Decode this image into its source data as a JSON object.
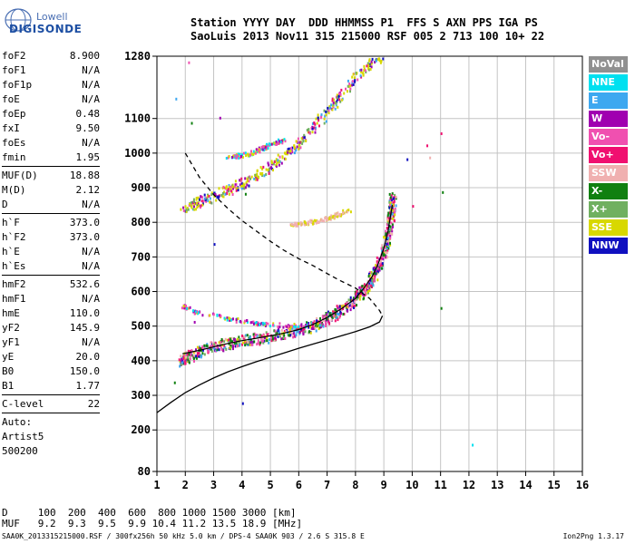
{
  "logo": {
    "line1": "Lowell",
    "line2": "DIGISONDE"
  },
  "header": {
    "line1": "Station YYYY DAY  DDD HHMMSS P1  FFS S AXN PPS IGA PS",
    "line2": "SaoLuis 2013 Nov11 315 215000 RSF 005 2 713 100 10+ 22"
  },
  "params": {
    "group1": [
      {
        "label": "foF2",
        "value": "8.900"
      },
      {
        "label": "foF1",
        "value": "N/A"
      },
      {
        "label": "foF1p",
        "value": "N/A"
      },
      {
        "label": "foE",
        "value": "N/A"
      },
      {
        "label": "foEp",
        "value": "0.48"
      },
      {
        "label": "fxI",
        "value": "9.50"
      },
      {
        "label": "foEs",
        "value": "N/A"
      },
      {
        "label": "fmin",
        "value": "1.95"
      }
    ],
    "group2": [
      {
        "label": "MUF(D)",
        "value": "18.88"
      },
      {
        "label": "M(D)",
        "value": "2.12"
      },
      {
        "label": "D",
        "value": "N/A"
      }
    ],
    "group3": [
      {
        "label": "h`F",
        "value": "373.0"
      },
      {
        "label": "h`F2",
        "value": "373.0"
      },
      {
        "label": "h`E",
        "value": "N/A"
      },
      {
        "label": "h`Es",
        "value": "N/A"
      }
    ],
    "group4": [
      {
        "label": "hmF2",
        "value": "532.6"
      },
      {
        "label": "hmF1",
        "value": "N/A"
      },
      {
        "label": "hmE",
        "value": "110.0"
      },
      {
        "label": "yF2",
        "value": "145.9"
      },
      {
        "label": "yF1",
        "value": "N/A"
      },
      {
        "label": "yE",
        "value": "20.0"
      },
      {
        "label": "B0",
        "value": "150.0"
      },
      {
        "label": "B1",
        "value": "1.77"
      }
    ],
    "group5": [
      {
        "label": "C-level",
        "value": "22"
      }
    ],
    "auto": [
      "Auto:",
      "Artist5",
      "500200"
    ]
  },
  "legend": [
    {
      "label": "NoVal",
      "color": "#909090"
    },
    {
      "label": "NNE",
      "color": "#00e0f0"
    },
    {
      "label": "E",
      "color": "#3da8f0"
    },
    {
      "label": "W",
      "color": "#a000b0"
    },
    {
      "label": "Vo-",
      "color": "#f050b0"
    },
    {
      "label": "Vo+",
      "color": "#f01070"
    },
    {
      "label": "SSW",
      "color": "#f0b0b0"
    },
    {
      "label": "X-",
      "color": "#108010"
    },
    {
      "label": "X+",
      "color": "#70b060"
    },
    {
      "label": "SSE",
      "color": "#d8d800"
    },
    {
      "label": "NNW",
      "color": "#1010c0"
    }
  ],
  "bottom_table": {
    "line1": "D     100  200  400  600  800 1000 1500 3000 [km]",
    "line2": "MUF   9.2  9.3  9.5  9.9 10.4 11.2 13.5 18.9 [MHz]"
  },
  "footer": {
    "left": "SAA0K_2013315215000.RSF / 300fx256h 50 kHz 5.0 km / DPS-4 SAA0K 903 / 2.6 S 315.8 E",
    "right": "Ion2Png 1.3.17"
  },
  "chart_data": {
    "type": "scatter",
    "xlim": [
      1,
      16
    ],
    "ylim": [
      80,
      1280
    ],
    "x_ticks": [
      1,
      2,
      3,
      4,
      5,
      6,
      7,
      8,
      9,
      10,
      11,
      12,
      13,
      14,
      15,
      16
    ],
    "y_ticks": [
      80,
      200,
      300,
      400,
      500,
      600,
      700,
      800,
      900,
      1000,
      1100,
      1280
    ],
    "grid": true,
    "legend_position": "right",
    "series": [
      {
        "type": "line",
        "style": "solid",
        "points": [
          [
            1.0,
            250
          ],
          [
            1.5,
            280
          ],
          [
            2.0,
            308
          ],
          [
            2.5,
            330
          ],
          [
            3.0,
            350
          ],
          [
            3.5,
            368
          ],
          [
            4.0,
            383
          ],
          [
            4.5,
            397
          ],
          [
            5.0,
            410
          ],
          [
            5.5,
            423
          ],
          [
            6.0,
            436
          ],
          [
            6.5,
            448
          ],
          [
            7.0,
            460
          ],
          [
            7.5,
            472
          ],
          [
            8.0,
            484
          ],
          [
            8.5,
            498
          ],
          [
            8.85,
            512
          ],
          [
            8.95,
            530
          ]
        ]
      },
      {
        "type": "line",
        "style": "dashed",
        "points": [
          [
            2.0,
            1000
          ],
          [
            2.5,
            930
          ],
          [
            3.0,
            880
          ],
          [
            3.5,
            840
          ],
          [
            4.0,
            805
          ],
          [
            4.5,
            775
          ],
          [
            5.0,
            745
          ],
          [
            5.5,
            718
          ],
          [
            6.0,
            695
          ],
          [
            6.5,
            675
          ],
          [
            7.0,
            652
          ],
          [
            7.5,
            630
          ],
          [
            8.0,
            610
          ],
          [
            8.5,
            580
          ],
          [
            8.85,
            545
          ],
          [
            8.95,
            530
          ]
        ]
      },
      {
        "type": "line",
        "style": "solid",
        "points": [
          [
            1.9,
            420
          ],
          [
            2.5,
            430
          ],
          [
            3.0,
            440
          ],
          [
            3.5,
            450
          ],
          [
            4.0,
            458
          ],
          [
            4.5,
            465
          ],
          [
            5.0,
            472
          ],
          [
            5.5,
            480
          ],
          [
            6.0,
            490
          ],
          [
            6.5,
            505
          ],
          [
            7.0,
            525
          ],
          [
            7.5,
            550
          ],
          [
            8.0,
            580
          ],
          [
            8.3,
            610
          ],
          [
            8.6,
            645
          ],
          [
            8.8,
            680
          ],
          [
            9.0,
            725
          ],
          [
            9.15,
            775
          ],
          [
            9.3,
            850
          ]
        ]
      }
    ],
    "traces": [
      {
        "name": "F2 o-trace",
        "points": [
          [
            1.8,
            400
          ],
          [
            2.2,
            420
          ],
          [
            2.8,
            440
          ],
          [
            3.4,
            450
          ],
          [
            4.0,
            460
          ],
          [
            4.6,
            468
          ],
          [
            5.2,
            478
          ],
          [
            5.8,
            488
          ],
          [
            6.4,
            500
          ],
          [
            6.9,
            520
          ],
          [
            7.4,
            545
          ],
          [
            7.9,
            575
          ],
          [
            8.3,
            610
          ],
          [
            8.6,
            645
          ],
          [
            8.8,
            680
          ],
          [
            9.0,
            725
          ],
          [
            9.15,
            775
          ],
          [
            9.25,
            830
          ],
          [
            9.3,
            880
          ]
        ]
      },
      {
        "name": "F2 2nd-hop",
        "points": [
          [
            1.9,
            840
          ],
          [
            2.4,
            860
          ],
          [
            3.0,
            880
          ],
          [
            3.6,
            900
          ],
          [
            4.2,
            925
          ],
          [
            4.8,
            955
          ],
          [
            5.4,
            990
          ],
          [
            6.0,
            1035
          ],
          [
            6.6,
            1085
          ],
          [
            7.2,
            1145
          ],
          [
            7.8,
            1205
          ],
          [
            8.4,
            1255
          ],
          [
            8.9,
            1280
          ]
        ]
      },
      {
        "name": "upper x-trace",
        "points": [
          [
            3.5,
            990
          ],
          [
            4.2,
            1000
          ],
          [
            4.8,
            1020
          ],
          [
            5.4,
            1040
          ]
        ]
      },
      {
        "name": "mid echo",
        "points": [
          [
            5.7,
            795
          ],
          [
            6.2,
            800
          ],
          [
            6.8,
            810
          ],
          [
            7.3,
            822
          ],
          [
            7.8,
            838
          ]
        ]
      },
      {
        "name": "lower x-trace",
        "points": [
          [
            1.9,
            560
          ],
          [
            2.5,
            540
          ],
          [
            3.5,
            525
          ],
          [
            4.5,
            510
          ],
          [
            5.5,
            505
          ],
          [
            6.3,
            505
          ]
        ]
      }
    ],
    "scattered_points": [
      {
        "x": 1.65,
        "y": 1160,
        "color": "#3da8f0"
      },
      {
        "x": 2.1,
        "y": 1265,
        "color": "#f050b0"
      },
      {
        "x": 3.0,
        "y": 740,
        "color": "#1010c0"
      },
      {
        "x": 3.2,
        "y": 1105,
        "color": "#a000b0"
      },
      {
        "x": 4.1,
        "y": 885,
        "color": "#108010"
      },
      {
        "x": 2.2,
        "y": 1090,
        "color": "#108010"
      },
      {
        "x": 10.0,
        "y": 850,
        "color": "#f01070"
      },
      {
        "x": 10.5,
        "y": 1025,
        "color": "#f01070"
      },
      {
        "x": 10.6,
        "y": 990,
        "color": "#f0b0b0"
      },
      {
        "x": 11.0,
        "y": 1060,
        "color": "#f01070"
      },
      {
        "x": 11.05,
        "y": 890,
        "color": "#108010"
      },
      {
        "x": 11.0,
        "y": 555,
        "color": "#108010"
      },
      {
        "x": 12.1,
        "y": 160,
        "color": "#00e0f0"
      },
      {
        "x": 4.0,
        "y": 280,
        "color": "#1010c0"
      },
      {
        "x": 9.8,
        "y": 985,
        "color": "#1010c0"
      },
      {
        "x": 2.3,
        "y": 515,
        "color": "#a000b0"
      },
      {
        "x": 1.6,
        "y": 340,
        "color": "#108010"
      }
    ]
  }
}
